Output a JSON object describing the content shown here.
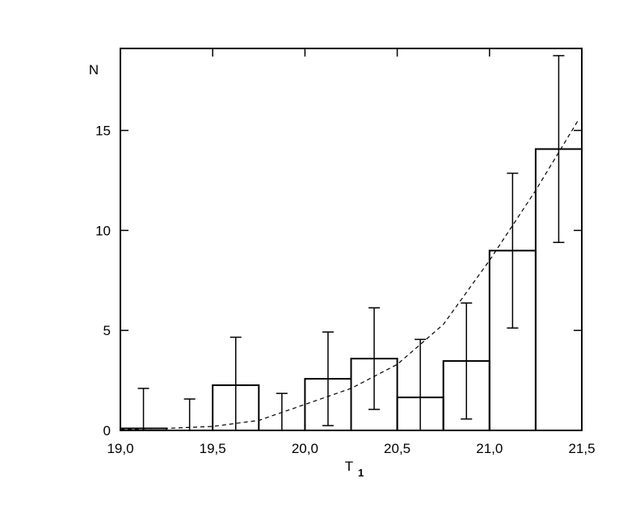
{
  "chart_data": {
    "type": "histogram",
    "x_label": "T",
    "x_label_subscript": "1",
    "y_label": "N",
    "bins": [
      19.0,
      19.25,
      19.5,
      19.75,
      20.0,
      20.25,
      20.5,
      20.75,
      21.0,
      21.25,
      21.5
    ],
    "counts": [
      0.1,
      0,
      2.26,
      0,
      2.58,
      3.59,
      1.65,
      3.47,
      8.99,
      14.07
    ],
    "errors": [
      2.0,
      1.57,
      2.4,
      1.85,
      2.34,
      2.54,
      2.9,
      2.9,
      3.87,
      4.67
    ],
    "color": "#000000",
    "fit": {
      "x": [
        19.0,
        19.25,
        19.5,
        19.75,
        20.0,
        20.25,
        20.5,
        20.75,
        21.0,
        21.25,
        21.48
      ],
      "y": [
        0.05,
        0.1,
        0.2,
        0.5,
        1.3,
        2.1,
        3.3,
        5.3,
        8.5,
        12.0,
        15.5
      ]
    },
    "xlim": [
      19.0,
      21.5
    ],
    "ylim": [
      0,
      19.1
    ],
    "xticks": [
      {
        "value": 19.0,
        "label": "19,0"
      },
      {
        "value": 19.5,
        "label": "19,5"
      },
      {
        "value": 20.0,
        "label": "20,0"
      },
      {
        "value": 20.5,
        "label": "20,5"
      },
      {
        "value": 21.0,
        "label": "21,0"
      },
      {
        "value": 21.5,
        "label": "21,5"
      }
    ],
    "yticks": [
      0,
      5,
      10,
      15
    ]
  }
}
